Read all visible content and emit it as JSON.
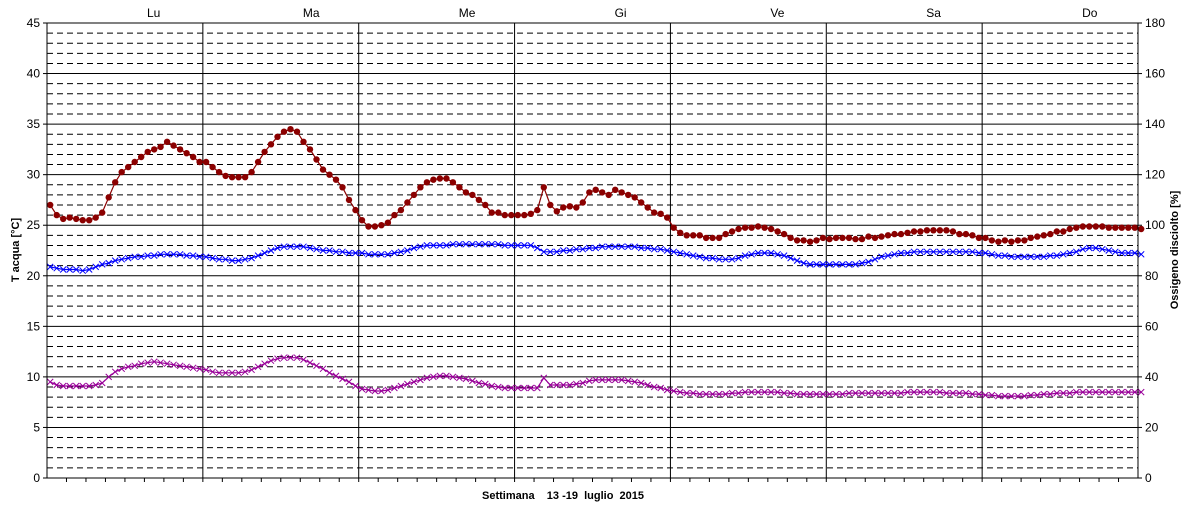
{
  "chart_data": {
    "type": "line",
    "title": "",
    "xlabel": "Settimana    13 -19  luglio  2015",
    "ylabel_left": "T acqua [°C]",
    "ylabel_right": "Ossigeno disciolto [%]",
    "ylim_left": [
      0,
      45
    ],
    "ylim_right": [
      0,
      180
    ],
    "yticks_left": [
      "0",
      "5",
      "10",
      "15",
      "20",
      "25",
      "30",
      "35",
      "40",
      "45"
    ],
    "yticks_right": [
      "0",
      "20",
      "40",
      "60",
      "80",
      "100",
      "120",
      "140",
      "160",
      "180"
    ],
    "days": [
      "Lu",
      "Ma",
      "Me",
      "Gi",
      "Ve",
      "Sa",
      "Do"
    ],
    "grid": true,
    "samples_per_day": 24,
    "colors": {
      "series_red": "#8b0000",
      "series_blue": "#0000ff",
      "series_purple": "#990099",
      "grid": "#000000"
    },
    "series": [
      {
        "axis": "right",
        "marker": "circle",
        "color": "#8b0000",
        "values": [
          108,
          104,
          102.5,
          103,
          102.5,
          102,
          102,
          103,
          105,
          111,
          117,
          121,
          123,
          125,
          127,
          129,
          130,
          131,
          133,
          131.5,
          130,
          128.5,
          127,
          125,
          125,
          123,
          121,
          119.5,
          119,
          119,
          119,
          121,
          125,
          129,
          132,
          135,
          137,
          138,
          137,
          133,
          130,
          126,
          122,
          120,
          118,
          115,
          110,
          106,
          102,
          99.5,
          99.5,
          100,
          101,
          104,
          106,
          109,
          112,
          115,
          117,
          118,
          118.5,
          118.5,
          117,
          115,
          113,
          112,
          110,
          108,
          105,
          105,
          104,
          104,
          104,
          104,
          104.5,
          106,
          115,
          108,
          105.5,
          107,
          107.5,
          107,
          109,
          113,
          114,
          113,
          112,
          114,
          113,
          112,
          111,
          109,
          107,
          105,
          104.5,
          103,
          99,
          97,
          96,
          96,
          96,
          95,
          95,
          95,
          96.5,
          97.5,
          98.5,
          99,
          99,
          99.5,
          99,
          98.5,
          97.5,
          96.5,
          95,
          94,
          94,
          93.5,
          94,
          95,
          94.5,
          95,
          95,
          95,
          94.5,
          94.5,
          95.5,
          95,
          95.5,
          96,
          96.5,
          96.5,
          97,
          97.5,
          97.5,
          98,
          98,
          98,
          98,
          97.5,
          96.5,
          96.5,
          96,
          95,
          95,
          94,
          93.5,
          94,
          93.5,
          94,
          94,
          95,
          95.5,
          96,
          96.5,
          97.5,
          97.5,
          98.5,
          99,
          99.5,
          99.5,
          99.5,
          99.5,
          99,
          99,
          99,
          99,
          99,
          98.5
        ]
      },
      {
        "axis": "right",
        "marker": "x",
        "color": "#0000ff",
        "values": [
          83.5,
          83,
          82.5,
          82.5,
          82.5,
          82,
          82.5,
          83.5,
          84.5,
          85,
          86,
          86.5,
          87,
          87.5,
          87.5,
          88,
          88,
          88.5,
          88.5,
          88.5,
          88.5,
          88,
          88,
          87.5,
          87.5,
          87,
          86.5,
          86.5,
          86,
          86,
          86.5,
          87,
          88,
          89,
          90,
          91,
          91.5,
          91.5,
          91.5,
          91.5,
          91,
          90.5,
          90,
          90,
          89.5,
          89.5,
          89,
          89,
          89,
          88.5,
          88.5,
          88.5,
          88.5,
          89,
          89.5,
          90,
          91,
          91.5,
          92,
          92,
          92,
          92,
          92.5,
          92.5,
          92.5,
          92.5,
          92.5,
          92.5,
          92.5,
          92.5,
          92,
          92,
          92,
          92,
          92,
          91,
          89.5,
          89.5,
          89.5,
          90,
          90,
          90.5,
          90.5,
          91,
          91,
          91.5,
          91.5,
          91.5,
          91.5,
          91.5,
          91.5,
          91,
          91,
          90.5,
          90.5,
          90,
          89.5,
          89,
          88.5,
          88,
          87.5,
          87,
          87,
          86.5,
          86.5,
          86.5,
          87,
          88,
          88.5,
          89,
          89,
          89,
          88.5,
          88,
          87,
          86,
          85,
          84.5,
          84.5,
          84.5,
          84.5,
          84.5,
          84.5,
          84.5,
          84.5,
          85,
          85.5,
          86.5,
          87.5,
          88,
          88.5,
          89,
          89,
          89.5,
          89.5,
          89.5,
          89.5,
          89.5,
          89.5,
          89.5,
          89.5,
          89.5,
          89.5,
          89,
          89,
          88.5,
          88,
          88,
          87.5,
          87.5,
          87.5,
          87.5,
          87.5,
          87.5,
          88,
          88,
          88.5,
          89,
          89.5,
          90.5,
          91,
          91,
          90.5,
          90,
          89.5,
          89,
          89,
          89,
          88.5
        ]
      },
      {
        "axis": "left",
        "marker": "x",
        "color": "#990099",
        "values": [
          9.5,
          9.2,
          9.1,
          9.1,
          9.1,
          9.1,
          9.1,
          9.2,
          9.4,
          10,
          10.5,
          10.8,
          11,
          11.1,
          11.3,
          11.4,
          11.5,
          11.4,
          11.3,
          11.2,
          11.1,
          11,
          10.9,
          10.8,
          10.7,
          10.5,
          10.4,
          10.4,
          10.4,
          10.4,
          10.5,
          10.7,
          11,
          11.3,
          11.6,
          11.8,
          11.9,
          11.9,
          11.9,
          11.7,
          11.4,
          11.1,
          10.8,
          10.4,
          10.1,
          9.8,
          9.5,
          9.1,
          8.8,
          8.7,
          8.6,
          8.6,
          8.7,
          8.9,
          9.1,
          9.3,
          9.5,
          9.7,
          9.9,
          10,
          10.1,
          10.1,
          10,
          9.9,
          9.8,
          9.6,
          9.4,
          9.3,
          9.1,
          9,
          8.9,
          8.9,
          8.9,
          8.9,
          8.9,
          8.9,
          9.9,
          9.2,
          9.2,
          9.2,
          9.2,
          9.3,
          9.4,
          9.6,
          9.7,
          9.7,
          9.7,
          9.7,
          9.7,
          9.6,
          9.5,
          9.4,
          9.2,
          9,
          8.9,
          8.7,
          8.6,
          8.5,
          8.4,
          8.4,
          8.3,
          8.3,
          8.3,
          8.3,
          8.3,
          8.4,
          8.4,
          8.5,
          8.5,
          8.5,
          8.5,
          8.5,
          8.5,
          8.4,
          8.4,
          8.3,
          8.3,
          8.3,
          8.3,
          8.3,
          8.3,
          8.3,
          8.3,
          8.4,
          8.4,
          8.4,
          8.4,
          8.4,
          8.4,
          8.4,
          8.4,
          8.4,
          8.5,
          8.5,
          8.5,
          8.5,
          8.5,
          8.5,
          8.4,
          8.4,
          8.4,
          8.4,
          8.3,
          8.3,
          8.2,
          8.2,
          8.1,
          8.1,
          8.1,
          8.1,
          8.1,
          8.2,
          8.2,
          8.3,
          8.3,
          8.4,
          8.4,
          8.4,
          8.5,
          8.5,
          8.5,
          8.5,
          8.5,
          8.5,
          8.5,
          8.5,
          8.5,
          8.5,
          8.5
        ]
      }
    ]
  }
}
